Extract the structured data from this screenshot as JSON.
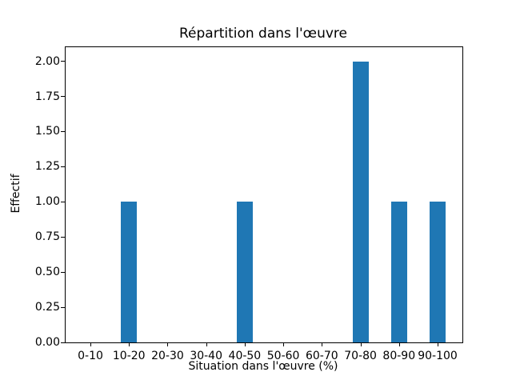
{
  "chart_data": {
    "type": "bar",
    "title": "Répartition dans l'œuvre",
    "xlabel": "Situation dans l'œuvre (%)",
    "ylabel": "Effectif",
    "categories": [
      "0-10",
      "10-20",
      "20-30",
      "30-40",
      "40-50",
      "50-60",
      "60-70",
      "70-80",
      "80-90",
      "90-100"
    ],
    "values": [
      0,
      1,
      0,
      0,
      1,
      0,
      0,
      2,
      1,
      1
    ],
    "ytick_labels": [
      "0.00",
      "0.25",
      "0.50",
      "0.75",
      "1.00",
      "1.25",
      "1.50",
      "1.75",
      "2.00"
    ],
    "ylim": [
      0,
      2.1
    ],
    "bar_color": "#1f77b4",
    "bar_width_ratio": 0.41,
    "grid": false,
    "legend": null
  }
}
